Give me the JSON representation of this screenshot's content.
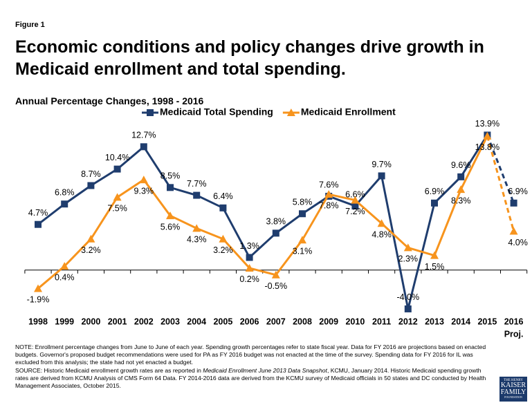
{
  "chart_data": {
    "type": "line",
    "figure_label": "Figure 1",
    "title": "Economic conditions and policy changes drive growth in Medicaid enrollment and total spending.",
    "subtitle": "Annual Percentage Changes, 1998 - 2016",
    "categories": [
      "1998",
      "1999",
      "2000",
      "2001",
      "2002",
      "2003",
      "2004",
      "2005",
      "2006",
      "2007",
      "2008",
      "2009",
      "2010",
      "2011",
      "2012",
      "2013",
      "2014",
      "2015",
      "2016"
    ],
    "projection_label": "Proj.",
    "ylim": [
      -5,
      15
    ],
    "series": [
      {
        "name": "Medicaid Total Spending",
        "color": "#1f3d6e",
        "marker": "square",
        "values": [
          4.7,
          6.8,
          8.7,
          10.4,
          12.7,
          8.5,
          7.7,
          6.4,
          1.3,
          3.8,
          5.8,
          7.6,
          6.6,
          9.7,
          -4.0,
          6.9,
          9.6,
          13.9,
          6.9
        ],
        "value_labels": [
          "4.7%",
          "6.8%",
          "8.7%",
          "10.4%",
          "12.7%",
          "8.5%",
          "7.7%",
          "6.4%",
          "1.3%",
          "3.8%",
          "5.8%",
          "7.6%",
          "6.6%",
          "9.7%",
          "-4.0%",
          "6.9%",
          "9.6%",
          "13.9%",
          "6.9%"
        ]
      },
      {
        "name": "Medicaid Enrollment",
        "color": "#f7941d",
        "marker": "triangle",
        "values": [
          -1.9,
          0.4,
          3.2,
          7.5,
          9.3,
          5.6,
          4.3,
          3.2,
          0.2,
          -0.5,
          3.1,
          7.8,
          7.2,
          4.8,
          2.3,
          1.5,
          8.3,
          13.8,
          4.0
        ],
        "value_labels": [
          "-1.9%",
          "0.4%",
          "3.2%",
          "7.5%",
          "9.3%",
          "5.6%",
          "4.3%",
          "3.2%",
          "0.2%",
          "-0.5%",
          "3.1%",
          "7.8%",
          "7.2%",
          "4.8%",
          "2.3%",
          "1.5%",
          "8.3%",
          "13.8%",
          "4.0%"
        ]
      }
    ],
    "legend": "top",
    "note": "NOTE: Enrollment percentage changes from June to June of each year. Spending growth percentages refer to state fiscal year. Data for FY 2016 are projections based on enacted budgets. Governor's proposed budget recommendations were used for PA as FY 2016 budget was not enacted at the time of the survey. Spending data for FY 2016 for IL was excluded from this analysis; the state had not yet enacted a budget.",
    "source": [
      "SOURCE: Historic Medicaid enrollment growth rates are as reported in ",
      "Medicaid Enrollment June 2013 Data Snapshot",
      ", KCMU, January 2014. Historic Medicaid spending growth rates are derived from KCMU Analysis of CMS Form 64 Data. FY 2014-2016 data are derived from the KCMU survey of Medicaid officials in 50 states and DC conducted by Health Management Associates, October 2015."
    ],
    "logo": [
      "THE HENRY",
      "KAISER",
      "FAMILY",
      "FOUNDATION"
    ]
  }
}
